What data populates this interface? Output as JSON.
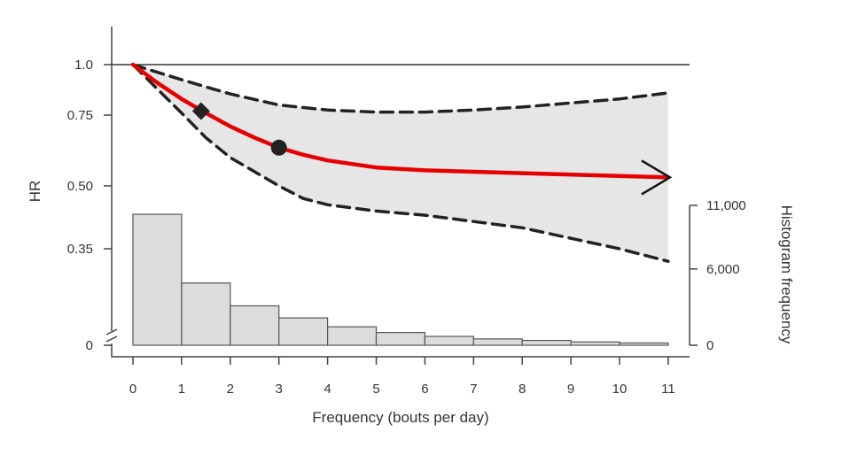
{
  "chart_data": {
    "type": "line",
    "xlabel": "Frequency (bouts per day)",
    "ylabel": "HR",
    "y2label": "Histogram frequency",
    "x_ticks": [
      "0",
      "1",
      "2",
      "3",
      "4",
      "5",
      "6",
      "7",
      "8",
      "9",
      "10",
      "11"
    ],
    "hr_ticks": [
      {
        "value": 1.0,
        "label": "1.0"
      },
      {
        "value": 0.75,
        "label": "0.75"
      },
      {
        "value": 0.5,
        "label": "0.50"
      },
      {
        "value": 0.35,
        "label": "0.35"
      },
      {
        "value": 0,
        "label": "0"
      }
    ],
    "hist_ticks": [
      {
        "value": 11000,
        "label": "11,000"
      },
      {
        "value": 6000,
        "label": "6,000"
      },
      {
        "value": 0,
        "label": "0"
      }
    ],
    "reference_line": 1.0,
    "hr_curve": {
      "x": [
        0,
        0.5,
        1,
        1.5,
        2,
        2.5,
        3,
        3.5,
        4,
        5,
        6,
        7,
        8,
        9,
        10,
        11
      ],
      "hr": [
        1.0,
        0.91,
        0.83,
        0.76,
        0.71,
        0.67,
        0.635,
        0.61,
        0.59,
        0.565,
        0.555,
        0.55,
        0.545,
        0.54,
        0.535,
        0.53
      ]
    },
    "ci_upper": {
      "x": [
        0,
        1,
        2,
        3,
        4,
        5,
        6,
        7,
        8,
        9,
        10,
        11
      ],
      "hr": [
        1.0,
        0.925,
        0.855,
        0.8,
        0.775,
        0.765,
        0.765,
        0.775,
        0.79,
        0.81,
        0.83,
        0.86
      ]
    },
    "ci_lower": {
      "x": [
        0,
        0.5,
        1,
        1.5,
        2,
        2.5,
        3,
        3.5,
        4,
        5,
        6,
        7,
        8,
        9,
        10,
        11
      ],
      "hr": [
        1.0,
        0.88,
        0.76,
        0.67,
        0.6,
        0.55,
        0.5,
        0.47,
        0.455,
        0.44,
        0.43,
        0.415,
        0.4,
        0.375,
        0.35,
        0.32
      ]
    },
    "markers": [
      {
        "shape": "diamond",
        "x": 1.4,
        "hr": 0.77
      },
      {
        "shape": "circle",
        "x": 3.0,
        "hr": 0.635
      }
    ],
    "histogram": {
      "bins_start": [
        0,
        1,
        2,
        3,
        4,
        5,
        6,
        7,
        8,
        9,
        10
      ],
      "counts": [
        10300,
        4900,
        3100,
        2150,
        1450,
        1000,
        700,
        500,
        380,
        260,
        180
      ]
    }
  }
}
